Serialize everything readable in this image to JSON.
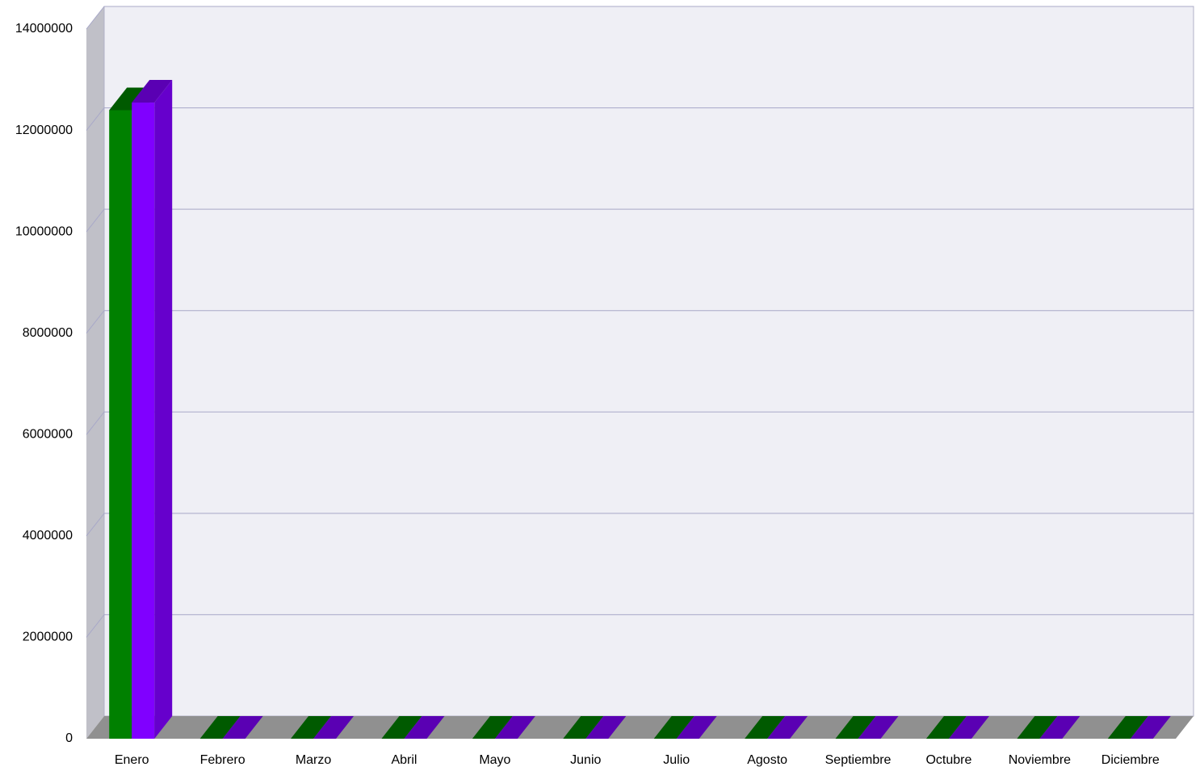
{
  "chart_data": {
    "type": "bar3d",
    "categories": [
      "Enero",
      "Febrero",
      "Marzo",
      "Abril",
      "Mayo",
      "Junio",
      "Julio",
      "Agosto",
      "Septiembre",
      "Octubre",
      "Noviembre",
      "Diciembre"
    ],
    "series": [
      {
        "color": "#008000",
        "values": [
          12400000,
          0,
          0,
          0,
          0,
          0,
          0,
          0,
          0,
          0,
          0,
          0
        ]
      },
      {
        "color": "#8000ff",
        "values": [
          12550000,
          0,
          0,
          0,
          0,
          0,
          0,
          0,
          0,
          0,
          0,
          0
        ]
      }
    ],
    "ylim": [
      0,
      14000000
    ],
    "yticks": [
      0,
      2000000,
      4000000,
      6000000,
      8000000,
      10000000,
      12000000,
      14000000
    ],
    "grid": true
  }
}
